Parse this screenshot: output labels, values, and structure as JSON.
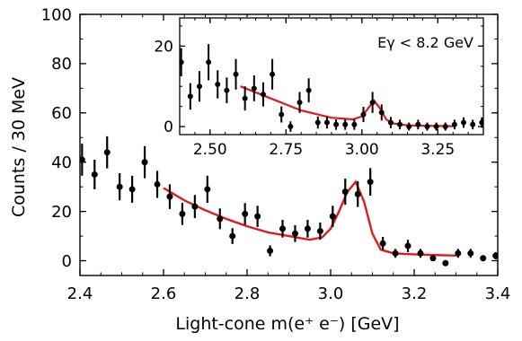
{
  "chart_data": [
    {
      "type": "scatter",
      "title": "",
      "xlabel": "Light-cone m(e⁺ e⁻) [GeV]",
      "ylabel": "Counts / 30 MeV",
      "xlim": [
        2.4,
        3.4
      ],
      "ylim": [
        -6,
        100
      ],
      "xticks": [
        "2.4",
        "2.6",
        "2.8",
        "3.0",
        "3.2",
        "3.4"
      ],
      "yticks": [
        "0",
        "20",
        "40",
        "60",
        "80",
        "100"
      ],
      "grid": false,
      "series": [
        {
          "kind": "points_with_error_bars",
          "x": [
            2.405,
            2.435,
            2.465,
            2.495,
            2.525,
            2.555,
            2.585,
            2.615,
            2.645,
            2.675,
            2.705,
            2.735,
            2.765,
            2.795,
            2.825,
            2.855,
            2.885,
            2.915,
            2.945,
            2.975,
            3.005,
            3.035,
            3.065,
            3.095,
            3.125,
            3.155,
            3.185,
            3.215,
            3.245,
            3.275,
            3.305,
            3.335,
            3.365,
            3.395
          ],
          "y": [
            41,
            35,
            44,
            30,
            29,
            40,
            31,
            26,
            19,
            22,
            29,
            17,
            10,
            19,
            18,
            4,
            13,
            11,
            13,
            12,
            18,
            28,
            27,
            32,
            7,
            3,
            6,
            3,
            1,
            -1,
            3,
            3,
            1,
            2
          ],
          "yerr": [
            6.5,
            6,
            6.5,
            5.5,
            5.5,
            6.5,
            5.5,
            5,
            4.5,
            4.7,
            5.5,
            4.2,
            3.2,
            4.4,
            4.3,
            2.2,
            3.6,
            3.4,
            3.6,
            3.5,
            4.3,
            5.3,
            5.2,
            5.6,
            2.7,
            1.8,
            2.5,
            1.8,
            1.1,
            1.1,
            1.8,
            1.8,
            1.1,
            1.5
          ]
        },
        {
          "kind": "fit_curve",
          "color": "#e31a1c",
          "x": [
            2.6,
            2.65,
            2.7,
            2.75,
            2.8,
            2.85,
            2.9,
            2.95,
            2.98,
            3.0,
            3.02,
            3.04,
            3.06,
            3.08,
            3.1,
            3.12,
            3.15,
            3.2,
            3.25,
            3.3
          ],
          "y": [
            29.5,
            24.5,
            20.5,
            17,
            14,
            11.5,
            10,
            8.5,
            9.5,
            13,
            20,
            28,
            32,
            24,
            11,
            4.5,
            3,
            2.6,
            2.3,
            2.1
          ]
        }
      ],
      "marker_color": "#000000"
    },
    {
      "type": "scatter",
      "title": "",
      "annotation": "Eγ < 8.2 GeV",
      "xlim": [
        2.4,
        3.4
      ],
      "ylim": [
        -2,
        27
      ],
      "xticks": [
        "2.50",
        "2.75",
        "3.00",
        "3.25"
      ],
      "yticks": [
        "0",
        "20"
      ],
      "grid": false,
      "series": [
        {
          "kind": "points_with_error_bars",
          "x": [
            2.405,
            2.435,
            2.465,
            2.495,
            2.525,
            2.555,
            2.585,
            2.615,
            2.645,
            2.675,
            2.705,
            2.735,
            2.765,
            2.795,
            2.825,
            2.855,
            2.885,
            2.915,
            2.945,
            2.975,
            3.005,
            3.035,
            3.065,
            3.095,
            3.125,
            3.155,
            3.185,
            3.215,
            3.245,
            3.275,
            3.305,
            3.335,
            3.365,
            3.395
          ],
          "y": [
            16,
            7.5,
            10,
            16,
            10.5,
            9,
            13,
            7,
            9.5,
            8,
            13,
            3,
            0,
            6,
            9,
            1,
            1,
            0.5,
            0.5,
            0.5,
            3,
            6,
            3.5,
            1,
            0.5,
            0,
            0.5,
            0,
            0,
            0,
            0.5,
            1,
            0.5,
            1
          ],
          "yerr": [
            3.5,
            3.3,
            3.8,
            4.5,
            3.5,
            3.2,
            3.8,
            3,
            3.2,
            3,
            3.8,
            2,
            1.3,
            2.6,
            3,
            1.5,
            1.5,
            1.3,
            1.3,
            1.3,
            1.9,
            2.6,
            2,
            1.4,
            1.2,
            1,
            1.2,
            1,
            1,
            1,
            1.2,
            1.3,
            1.2,
            1.3
          ]
        },
        {
          "kind": "fit_curve",
          "color": "#e31a1c",
          "x": [
            2.6,
            2.7,
            2.8,
            2.9,
            2.97,
            3.0,
            3.02,
            3.04,
            3.06,
            3.08,
            3.1,
            3.15,
            3.2,
            3.3
          ],
          "y": [
            10,
            7,
            4,
            2.2,
            1.8,
            2.5,
            4.5,
            6.5,
            4.5,
            1.8,
            0.8,
            0.3,
            0.2,
            0.1
          ]
        }
      ]
    }
  ]
}
